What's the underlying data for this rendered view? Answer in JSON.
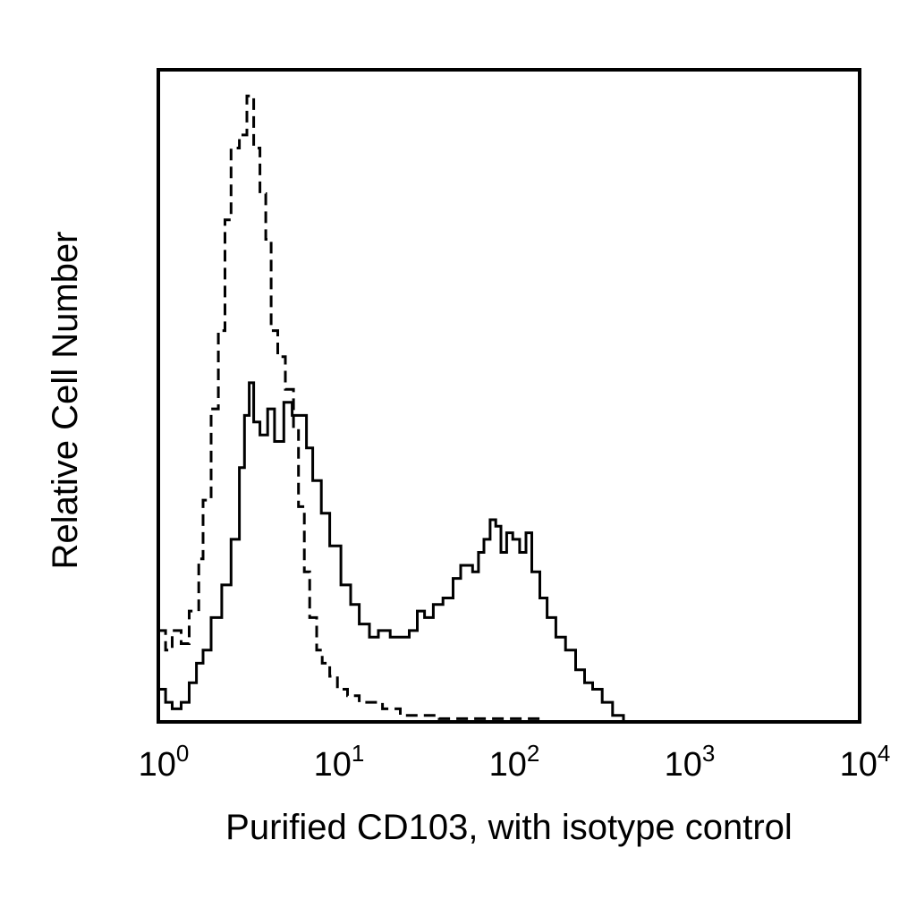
{
  "chart_data": {
    "type": "line",
    "title": "",
    "xlabel": "Purified CD103, with isotype control",
    "ylabel": "Relative Cell Number",
    "x_scale": "log10",
    "xlim": [
      1,
      10000
    ],
    "ylim": [
      0,
      100
    ],
    "grid": false,
    "legend": "none",
    "x_ticks": [
      {
        "base": "10",
        "exp": "0",
        "value": 1
      },
      {
        "base": "10",
        "exp": "1",
        "value": 10
      },
      {
        "base": "10",
        "exp": "2",
        "value": 100
      },
      {
        "base": "10",
        "exp": "3",
        "value": 1000
      },
      {
        "base": "10",
        "exp": "4",
        "value": 10000
      }
    ],
    "series": [
      {
        "style": "dashed",
        "color": "#000000",
        "points": [
          [
            1.0,
            14
          ],
          [
            1.1,
            11
          ],
          [
            1.2,
            14
          ],
          [
            1.35,
            12
          ],
          [
            1.5,
            17
          ],
          [
            1.7,
            25
          ],
          [
            1.8,
            34
          ],
          [
            2.0,
            48
          ],
          [
            2.2,
            60
          ],
          [
            2.4,
            77
          ],
          [
            2.6,
            88
          ],
          [
            2.9,
            90
          ],
          [
            3.2,
            96
          ],
          [
            3.5,
            88
          ],
          [
            3.8,
            81
          ],
          [
            4.1,
            74
          ],
          [
            4.4,
            60
          ],
          [
            4.8,
            56
          ],
          [
            5.3,
            51
          ],
          [
            5.9,
            45
          ],
          [
            6.3,
            33
          ],
          [
            6.8,
            23
          ],
          [
            7.3,
            16
          ],
          [
            8.0,
            11
          ],
          [
            8.6,
            9
          ],
          [
            9.5,
            7
          ],
          [
            10.5,
            5
          ],
          [
            12,
            4
          ],
          [
            14,
            3
          ],
          [
            16,
            3
          ],
          [
            19,
            2
          ],
          [
            24,
            1
          ],
          [
            30,
            1
          ],
          [
            40,
            0.5
          ],
          [
            60,
            0.5
          ],
          [
            100,
            0.5
          ],
          [
            150,
            0
          ],
          [
            400,
            0
          ]
        ]
      },
      {
        "style": "solid",
        "color": "#000000",
        "points": [
          [
            1.0,
            5
          ],
          [
            1.1,
            3
          ],
          [
            1.2,
            2
          ],
          [
            1.35,
            3
          ],
          [
            1.5,
            6
          ],
          [
            1.65,
            9
          ],
          [
            1.8,
            11
          ],
          [
            2.0,
            16
          ],
          [
            2.3,
            21
          ],
          [
            2.6,
            28
          ],
          [
            2.9,
            39
          ],
          [
            3.1,
            47
          ],
          [
            3.3,
            52
          ],
          [
            3.5,
            46
          ],
          [
            3.8,
            44
          ],
          [
            4.2,
            48
          ],
          [
            4.6,
            43
          ],
          [
            5.2,
            49
          ],
          [
            5.8,
            47
          ],
          [
            6.4,
            47
          ],
          [
            7.0,
            42
          ],
          [
            7.6,
            37
          ],
          [
            8.5,
            32
          ],
          [
            9.5,
            27
          ],
          [
            11,
            21
          ],
          [
            12.5,
            18
          ],
          [
            14,
            15
          ],
          [
            16,
            13
          ],
          [
            18,
            14
          ],
          [
            21,
            13
          ],
          [
            24,
            13
          ],
          [
            27,
            14
          ],
          [
            30,
            17
          ],
          [
            33,
            16
          ],
          [
            37,
            18
          ],
          [
            42,
            19
          ],
          [
            48,
            22
          ],
          [
            53,
            24
          ],
          [
            58,
            24
          ],
          [
            62,
            23
          ],
          [
            67,
            26
          ],
          [
            72,
            28
          ],
          [
            78,
            31
          ],
          [
            84,
            30
          ],
          [
            90,
            26
          ],
          [
            97,
            29
          ],
          [
            105,
            28
          ],
          [
            115,
            26
          ],
          [
            125,
            29
          ],
          [
            135,
            23
          ],
          [
            150,
            19
          ],
          [
            165,
            16
          ],
          [
            185,
            13
          ],
          [
            210,
            11
          ],
          [
            240,
            8
          ],
          [
            270,
            6
          ],
          [
            300,
            5
          ],
          [
            340,
            3
          ],
          [
            390,
            1
          ],
          [
            450,
            0
          ],
          [
            1000,
            0
          ],
          [
            3300,
            0
          ],
          [
            10000,
            0
          ]
        ]
      }
    ]
  }
}
